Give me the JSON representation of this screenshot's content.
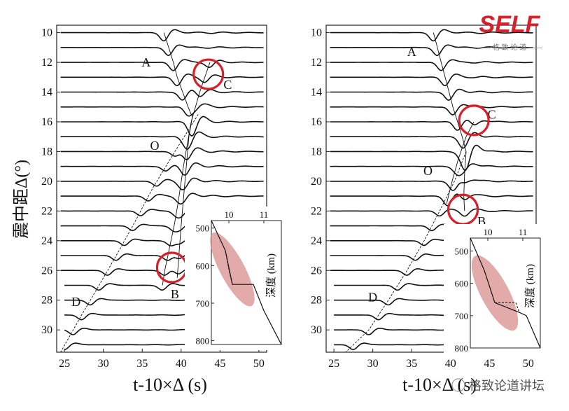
{
  "chart_data": [
    {
      "type": "line",
      "panel": "left",
      "ylabel": "震中距Δ(°)",
      "xlabel": "t-10×Δ (s)",
      "xlim": [
        24,
        51
      ],
      "ylim": [
        9.5,
        31.5
      ],
      "xticks": [
        25,
        30,
        35,
        40,
        45,
        50
      ],
      "yticks": [
        10,
        12,
        14,
        16,
        18,
        20,
        22,
        24,
        26,
        28,
        30
      ],
      "distances": [
        10,
        11,
        12,
        13,
        14,
        15,
        16,
        17,
        18,
        19,
        20,
        21,
        22,
        23,
        24,
        25,
        26,
        27,
        28,
        29,
        30,
        31
      ],
      "branch_labels": [
        {
          "text": "A",
          "x": 35.5,
          "y": 12.0
        },
        {
          "text": "C",
          "x": 46.0,
          "y": 13.5
        },
        {
          "text": "O",
          "x": 36.6,
          "y": 17.6
        },
        {
          "text": "B",
          "x": 39.2,
          "y": 27.6
        },
        {
          "text": "D",
          "x": 26.5,
          "y": 28.1
        }
      ],
      "branches": [
        {
          "name": "early-direct",
          "x": [
            37.8,
            38.4,
            39.0,
            39.5,
            40.2,
            40.9,
            41.3
          ],
          "y": [
            10,
            11,
            12,
            13,
            14,
            15,
            15.5
          ]
        },
        {
          "name": "retrograde-C",
          "x": [
            37.6,
            37.9,
            38.3,
            38.7,
            39.1,
            39.6,
            40.3,
            41.3,
            42.4,
            43.7
          ],
          "y": [
            27,
            26,
            25,
            24,
            23,
            21.5,
            19,
            16,
            14,
            12
          ]
        },
        {
          "name": "late-B",
          "x": [
            41.5,
            41.0,
            40.5,
            40.0,
            39.5
          ],
          "y": [
            15.5,
            17,
            20,
            23,
            26.5
          ]
        },
        {
          "name": "D",
          "x": [
            42.2,
            39.2,
            36.3,
            34.3,
            32.2,
            30.0,
            27.2,
            24.5
          ],
          "y": [
            15.5,
            18,
            20.5,
            22.5,
            24.5,
            26.5,
            29,
            31.5
          ]
        }
      ],
      "circles": [
        {
          "x": 43.5,
          "y": 12.8
        },
        {
          "x": 38.8,
          "y": 25.8
        }
      ],
      "inset": {
        "xlabel_ticks": [
          10,
          11
        ],
        "xlim": [
          9.5,
          11.5
        ],
        "ylim": [
          480,
          810
        ],
        "yticks": [
          500,
          600,
          700,
          800
        ],
        "ylabel": "深度 (km)",
        "profile_x": [
          9.5,
          9.9,
          10.1,
          10.7,
          11.0,
          11.5
        ],
        "profile_y": [
          480,
          560,
          650,
          650,
          720,
          810
        ],
        "dashed_x": [
          9.9,
          10.0,
          10.1
        ],
        "dashed_y": [
          560,
          610,
          650
        ],
        "ellipse": {
          "cx": 10.1,
          "cy": 610,
          "rx": 0.35,
          "ry": 110
        }
      }
    },
    {
      "type": "line",
      "panel": "right",
      "ylabel": "",
      "xlabel": "t-10×Δ (s)",
      "xlim": [
        24,
        51
      ],
      "ylim": [
        9.5,
        31.5
      ],
      "xticks": [
        25,
        30,
        35,
        40,
        45,
        50
      ],
      "yticks": [
        10,
        12,
        14,
        16,
        18,
        20,
        22,
        24,
        26,
        28,
        30
      ],
      "distances": [
        10,
        11,
        12,
        13,
        14,
        15,
        16,
        17,
        18,
        19,
        20,
        21,
        22,
        23,
        24,
        25,
        26,
        27,
        28,
        29,
        30,
        31
      ],
      "branch_labels": [
        {
          "text": "A",
          "x": 35.0,
          "y": 11.3
        },
        {
          "text": "C",
          "x": 45.3,
          "y": 15.5
        },
        {
          "text": "O",
          "x": 37.1,
          "y": 19.3
        },
        {
          "text": "B",
          "x": 44.0,
          "y": 22.7
        },
        {
          "text": "D",
          "x": 30.0,
          "y": 27.8
        }
      ],
      "branches": [
        {
          "name": "early-direct",
          "x": [
            37.8,
            38.3,
            38.8,
            39.3,
            39.8,
            40.3,
            40.9,
            41.5,
            42.0
          ],
          "y": [
            10,
            11,
            12,
            13,
            14,
            15,
            16,
            17,
            18
          ]
        },
        {
          "name": "retrograde-C",
          "x": [
            39.5,
            40.2,
            41.0,
            42.0,
            43.0
          ],
          "y": [
            21.5,
            20,
            18.5,
            17,
            16
          ]
        },
        {
          "name": "late-B",
          "x": [
            42.0,
            41.8,
            41.7,
            41.8
          ],
          "y": [
            18,
            19.5,
            21,
            22
          ]
        },
        {
          "name": "D",
          "x": [
            42.0,
            40.5,
            38.6,
            36.6,
            34.4,
            32.0,
            29.5,
            26.5
          ],
          "y": [
            18,
            20,
            22,
            24,
            26,
            28,
            30,
            31.5
          ]
        }
      ],
      "circles": [
        {
          "x": 43.0,
          "y": 15.9
        },
        {
          "x": 41.6,
          "y": 21.9
        }
      ],
      "inset": {
        "xlabel_ticks": [
          10,
          11
        ],
        "xlim": [
          9.5,
          11.5
        ],
        "ylim": [
          460,
          800
        ],
        "yticks": [
          500,
          600,
          700,
          800
        ],
        "ylabel": "深度 (km)",
        "profile_x": [
          9.5,
          9.9,
          10.2,
          10.9,
          11.1,
          11.5
        ],
        "profile_y": [
          460,
          560,
          660,
          690,
          700,
          800
        ],
        "dashed_x": [
          10.2,
          10.8,
          10.9
        ],
        "dashed_y": [
          660,
          660,
          690
        ],
        "ellipse": {
          "cx": 10.2,
          "cy": 630,
          "rx": 0.4,
          "ry": 130
        }
      }
    }
  ],
  "logo": {
    "main": "SELF",
    "sub": "—— 格 致 论 道 ——"
  },
  "watermark": {
    "text": "格致论道讲坛"
  },
  "colors": {
    "accent": "#d8202a",
    "ellipse": "#d98e8e",
    "trace": "#111111"
  }
}
